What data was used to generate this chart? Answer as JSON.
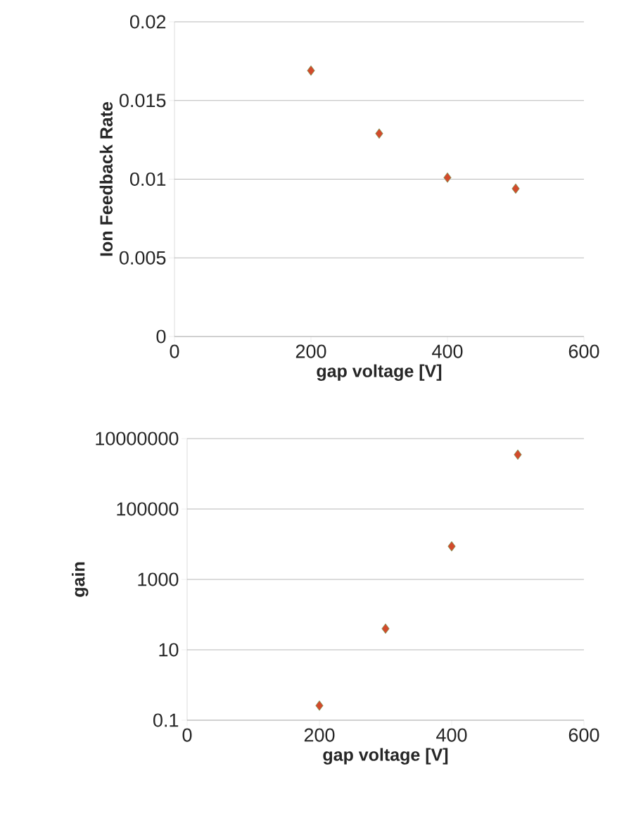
{
  "chart_data": [
    {
      "type": "scatter",
      "xlabel": "gap voltage [V]",
      "ylabel": "Ion Feedback Rate",
      "x": [
        200,
        300,
        400,
        500
      ],
      "values": [
        0.0169,
        0.0129,
        0.0101,
        0.0094
      ],
      "color": "#d24b2c",
      "marker": "diamond",
      "grid": "y",
      "xlim": [
        0,
        600
      ],
      "xticks": [
        0,
        200,
        400,
        600
      ],
      "ylim": [
        0,
        0.02
      ],
      "yticks": [
        0,
        0.005,
        0.01,
        0.015,
        0.02
      ]
    },
    {
      "type": "scatter",
      "xlabel": "gap voltage [V]",
      "ylabel": "gain",
      "x": [
        200,
        300,
        400,
        500
      ],
      "values": [
        0.26,
        40,
        8700,
        3500000
      ],
      "color": "#d24b2c",
      "marker": "diamond",
      "grid": "y",
      "log": true,
      "xlim": [
        0,
        600
      ],
      "xticks": [
        0,
        200,
        400,
        600
      ],
      "ylim": [
        0.1,
        10000000
      ],
      "yticks": [
        0.1,
        10,
        1000,
        100000,
        10000000
      ]
    }
  ]
}
